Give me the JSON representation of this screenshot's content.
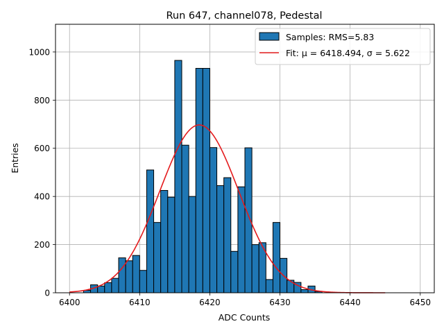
{
  "chart_data": {
    "type": "bar",
    "title": "Run 647, channel078, Pedestal",
    "xlabel": "ADC Counts",
    "ylabel": "Entries",
    "xlim": [
      6398,
      6452
    ],
    "ylim": [
      0,
      1115
    ],
    "xticks": [
      6400,
      6410,
      6420,
      6430,
      6440,
      6450
    ],
    "yticks": [
      0,
      200,
      400,
      600,
      800,
      1000
    ],
    "grid": true,
    "legend_position": "top-right",
    "histogram": {
      "name": "Samples: RMS=5.83",
      "color": "#1f77b4",
      "edgecolor": "#000000",
      "bin_width": 1,
      "bins": [
        {
          "x": 6402,
          "value": 10
        },
        {
          "x": 6403,
          "value": 33
        },
        {
          "x": 6404,
          "value": 28
        },
        {
          "x": 6405,
          "value": 42
        },
        {
          "x": 6406,
          "value": 60
        },
        {
          "x": 6407,
          "value": 145
        },
        {
          "x": 6408,
          "value": 133
        },
        {
          "x": 6409,
          "value": 155
        },
        {
          "x": 6410,
          "value": 93
        },
        {
          "x": 6411,
          "value": 510
        },
        {
          "x": 6412,
          "value": 292
        },
        {
          "x": 6413,
          "value": 425
        },
        {
          "x": 6414,
          "value": 397
        },
        {
          "x": 6415,
          "value": 965
        },
        {
          "x": 6416,
          "value": 613
        },
        {
          "x": 6417,
          "value": 400
        },
        {
          "x": 6418,
          "value": 932
        },
        {
          "x": 6419,
          "value": 932
        },
        {
          "x": 6420,
          "value": 603
        },
        {
          "x": 6421,
          "value": 445
        },
        {
          "x": 6422,
          "value": 478
        },
        {
          "x": 6423,
          "value": 172
        },
        {
          "x": 6424,
          "value": 440
        },
        {
          "x": 6425,
          "value": 602
        },
        {
          "x": 6426,
          "value": 200
        },
        {
          "x": 6427,
          "value": 208
        },
        {
          "x": 6428,
          "value": 55
        },
        {
          "x": 6429,
          "value": 292
        },
        {
          "x": 6430,
          "value": 143
        },
        {
          "x": 6431,
          "value": 52
        },
        {
          "x": 6432,
          "value": 43
        },
        {
          "x": 6433,
          "value": 13
        },
        {
          "x": 6434,
          "value": 28
        },
        {
          "x": 6435,
          "value": 5
        }
      ]
    },
    "fit": {
      "name": "Fit: μ = 6418.494, σ = 5.622",
      "color": "#e41a1c",
      "mu": 6418.494,
      "sigma": 5.622,
      "amplitude": 697,
      "x_range": [
        6400,
        6445
      ]
    }
  }
}
